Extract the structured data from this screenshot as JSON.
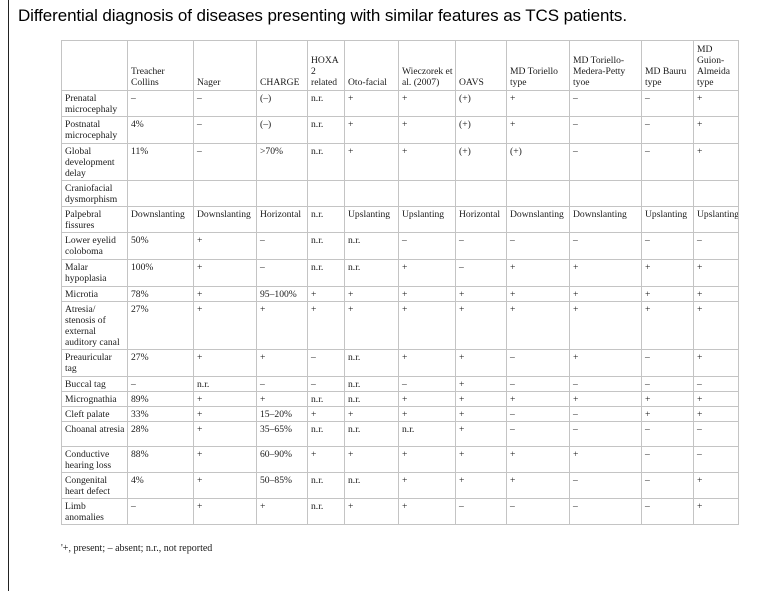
{
  "title": "Differential diagnosis of diseases presenting with similar features as TCS patients.",
  "columns": [
    "",
    "Treacher Collins",
    "Nager",
    "CHARGE",
    "HOXA 2 related",
    "Oto-facial",
    "Wieczorek et al. (2007)",
    "OAVS",
    "MD Toriello type",
    "MD Toriello-Medera-Petty tyoe",
    "MD Bauru type",
    "MD Guion-Almeida type"
  ],
  "rows": [
    {
      "feature": "Prenatal microcephaly",
      "cells": [
        "–",
        "–",
        "(–)",
        "n.r.",
        "+",
        "+",
        "(+)",
        "+",
        "–",
        "–",
        "+"
      ]
    },
    {
      "feature": "Postnatal microcephaly",
      "cells": [
        "4%",
        "–",
        "(–)",
        "n.r.",
        "+",
        "+",
        "(+)",
        "+",
        "–",
        "–",
        "+"
      ]
    },
    {
      "feature": "Global development delay",
      "cells": [
        "11%",
        "–",
        ">70%",
        "n.r.",
        "+",
        "+",
        "(+)",
        "(+)",
        "–",
        "–",
        "+"
      ]
    },
    {
      "feature": "Craniofacial dysmorphism",
      "cells": [
        "",
        "",
        "",
        "",
        "",
        "",
        "",
        "",
        "",
        "",
        ""
      ]
    },
    {
      "feature": "Palpebral fissures",
      "cells": [
        "Downslanting",
        "Downslanting",
        "Horizontal",
        "n.r.",
        "Upslanting",
        "Upslanting",
        "Horizontal",
        "Downslanting",
        "Downslanting",
        "Upslanting",
        "Upslanting"
      ]
    },
    {
      "feature": "Lower eyelid coloboma",
      "cells": [
        "50%",
        "+",
        "–",
        "n.r.",
        "n.r.",
        "–",
        "–",
        "–",
        "–",
        "–",
        "–"
      ]
    },
    {
      "feature": "Malar hypoplasia",
      "cells": [
        "100%",
        "+",
        "–",
        "n.r.",
        "n.r.",
        "+",
        "–",
        "+",
        "+",
        "+",
        "+"
      ]
    },
    {
      "feature": "Microtia",
      "cells": [
        "78%",
        "+",
        "95–100%",
        "+",
        "+",
        "+",
        "+",
        "+",
        "+",
        "+",
        "+"
      ]
    },
    {
      "feature": "Atresia/ stenosis of external auditory canal",
      "cells": [
        "27%",
        "+",
        "+",
        "+",
        "+",
        "+",
        "+",
        "+",
        "+",
        "+",
        "+"
      ]
    },
    {
      "feature": "Preauricular tag",
      "cells": [
        "27%",
        "+",
        "+",
        "–",
        "n.r.",
        "+",
        "+",
        "–",
        "+",
        "–",
        "+"
      ]
    },
    {
      "feature": "Buccal tag",
      "cells": [
        "–",
        "n.r.",
        "–",
        "–",
        "n.r.",
        "–",
        "+",
        "–",
        "–",
        "–",
        "–"
      ]
    },
    {
      "feature": "Micrognathia",
      "cells": [
        "89%",
        "+",
        "+",
        "n.r.",
        "n.r.",
        "+",
        "+",
        "+",
        "+",
        "+",
        "+"
      ]
    },
    {
      "feature": "Cleft palate",
      "cells": [
        "33%",
        "+",
        "15–20%",
        "+",
        "+",
        "+",
        "+",
        "–",
        "–",
        "+",
        "+"
      ]
    },
    {
      "feature": "Choanal atresia",
      "cells": [
        "28%",
        "+",
        "35–65%",
        "n.r.",
        "n.r.",
        "n.r.",
        "+",
        "–",
        "–",
        "–",
        "–"
      ]
    },
    {
      "feature": "Conductive hearing loss",
      "cells": [
        "88%",
        "+",
        "60–90%",
        "+",
        "+",
        "+",
        "+",
        "+",
        "+",
        "–",
        "–"
      ]
    },
    {
      "feature": "Congenital heart defect",
      "cells": [
        "4%",
        "+",
        "50–85%",
        "n.r.",
        "n.r.",
        "+",
        "+",
        "+",
        "–",
        "–",
        "+"
      ]
    },
    {
      "feature": "Limb anomalies",
      "cells": [
        "–",
        "+",
        "+",
        "n.r.",
        "+",
        "+",
        "–",
        "–",
        "–",
        "–",
        "+"
      ]
    }
  ],
  "footnote": "'+, present; – absent; n.r., not reported"
}
